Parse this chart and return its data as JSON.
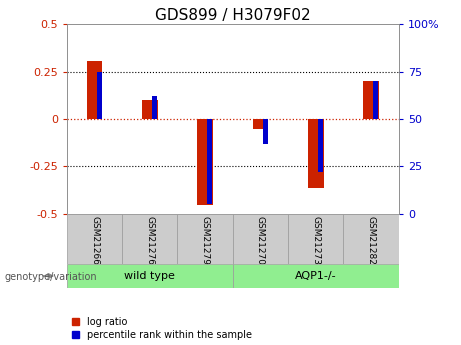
{
  "title": "GDS899 / H3079F02",
  "categories": [
    "GSM21266",
    "GSM21276",
    "GSM21279",
    "GSM21270",
    "GSM21273",
    "GSM21282"
  ],
  "log_ratio": [
    0.305,
    0.1,
    -0.455,
    -0.055,
    -0.365,
    0.2
  ],
  "percentile_rank_raw": [
    75,
    62,
    5,
    37,
    22,
    70
  ],
  "bar_color_red": "#CC2200",
  "bar_color_blue": "#0000CC",
  "red_bar_width": 0.28,
  "blue_bar_width": 0.09,
  "ylim_left": [
    -0.5,
    0.5
  ],
  "ylim_right": [
    0,
    100
  ],
  "yticks_left": [
    -0.5,
    -0.25,
    0.0,
    0.25,
    0.5
  ],
  "yticks_right": [
    0,
    25,
    50,
    75,
    100
  ],
  "ytick_labels_left": [
    "-0.5",
    "-0.25",
    "0",
    "0.25",
    "0.5"
  ],
  "ytick_labels_right": [
    "0",
    "25",
    "50",
    "75",
    "100%"
  ],
  "hline_zero_color": "#CC2200",
  "hline_dotted_color": "#000000",
  "bg_color": "#FFFFFF",
  "legend_items": [
    "log ratio",
    "percentile rank within the sample"
  ],
  "genotype_label": "genotype/variation",
  "group_label_wt": "wild type",
  "group_label_aqp1": "AQP1-/-",
  "gray_color": "#CCCCCC",
  "green_color": "#90EE90",
  "border_color": "#999999",
  "title_fontsize": 11,
  "axis_fontsize": 8
}
